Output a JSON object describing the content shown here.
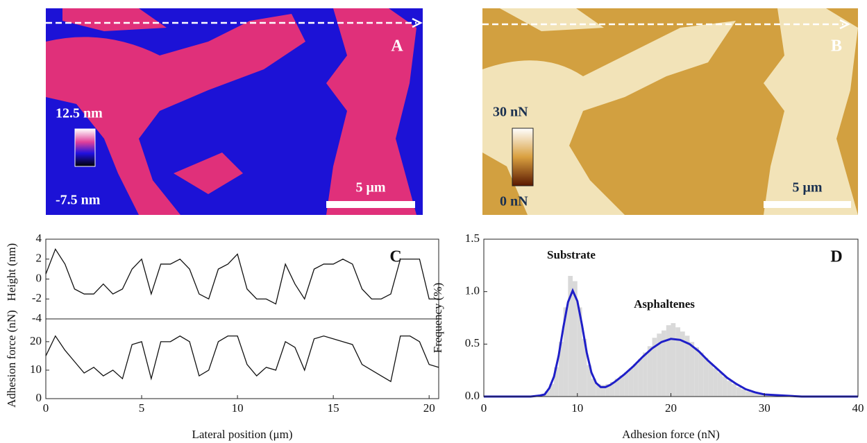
{
  "chart_data": [
    {
      "type": "image",
      "label": "A",
      "colorbar_max": "12.5 nm",
      "colorbar_min": "-7.5 nm",
      "scale_bar": "5 μm"
    },
    {
      "type": "image",
      "label": "B",
      "colorbar_max": "30 nN",
      "colorbar_min": "0 nN",
      "scale_bar": "5 μm"
    },
    {
      "type": "line",
      "label": "C",
      "xlabel": "Lateral position (μm)",
      "x": [
        0,
        0.5,
        1,
        1.5,
        2,
        2.5,
        3,
        3.5,
        4,
        4.5,
        5,
        5.5,
        6,
        6.5,
        7,
        7.5,
        8,
        8.5,
        9,
        9.5,
        10,
        10.5,
        11,
        11.5,
        12,
        12.5,
        13,
        13.5,
        14,
        14.5,
        15,
        15.5,
        16,
        16.5,
        17,
        17.5,
        18,
        18.5,
        19,
        19.5,
        20,
        20.5
      ],
      "xlim": [
        0,
        20.5
      ],
      "xticks": [
        0,
        5,
        10,
        15,
        20
      ],
      "subplots": [
        {
          "ylabel": "Height (nm)",
          "ylim": [
            -4,
            4
          ],
          "yticks": [
            -4,
            -2,
            0,
            2,
            4
          ],
          "color": "#111111",
          "values": [
            0.5,
            3,
            1.5,
            -1,
            -1.5,
            -1.5,
            -0.5,
            -1.5,
            -1,
            1,
            2,
            -1.5,
            1.5,
            1.5,
            2,
            1,
            -1.5,
            -2,
            1,
            1.5,
            2.5,
            -1,
            -2,
            -2,
            -2.5,
            1.5,
            -0.5,
            -2,
            1,
            1.5,
            1.5,
            2,
            1.5,
            -1,
            -2,
            -2,
            -1.5,
            2,
            2,
            2,
            -2,
            -2
          ]
        },
        {
          "ylabel": "Adhesion force (nN)",
          "ylim": [
            0,
            28
          ],
          "yticks": [
            0,
            10,
            20
          ],
          "color": "#111111",
          "values": [
            15,
            22,
            17,
            13,
            9,
            11,
            8,
            10,
            7,
            19,
            20,
            7,
            20,
            20,
            22,
            20,
            8,
            10,
            20,
            22,
            22,
            12,
            8,
            11,
            10,
            20,
            18,
            10,
            21,
            22,
            21,
            20,
            19,
            12,
            10,
            8,
            6,
            22,
            22,
            20,
            12,
            11
          ]
        }
      ]
    },
    {
      "type": "histogram",
      "label": "D",
      "xlabel": "Adhesion force (nN)",
      "ylabel": "Frequency (%)",
      "annotations": [
        "Substrate",
        "Asphaltenes"
      ],
      "xlim": [
        0,
        40
      ],
      "xticks": [
        0,
        10,
        20,
        30,
        40
      ],
      "ylim": [
        0,
        1.5
      ],
      "yticks": [
        {
          "value": 0,
          "label": "0.0"
        },
        0.5,
        {
          "value": 1,
          "label": "1.0"
        },
        1.5
      ],
      "color": "#d9d9d9",
      "bins": [
        5,
        5.5,
        6,
        6.5,
        7,
        7.5,
        8,
        8.5,
        9,
        9.5,
        10,
        10.5,
        11,
        11.5,
        12,
        12.5,
        13,
        13.5,
        14,
        14.5,
        15,
        15.5,
        16,
        16.5,
        17,
        17.5,
        18,
        18.5,
        19,
        19.5,
        20,
        20.5,
        21,
        21.5,
        22,
        22.5,
        23,
        23.5,
        24,
        24.5,
        25,
        25.5,
        26,
        26.5,
        27,
        27.5,
        28,
        28.5,
        29,
        29.5,
        30,
        30.5,
        31,
        31.5,
        32
      ],
      "counts": [
        0.0,
        0.01,
        0.02,
        0.05,
        0.12,
        0.28,
        0.52,
        0.85,
        1.15,
        1.1,
        0.85,
        0.55,
        0.3,
        0.17,
        0.12,
        0.11,
        0.12,
        0.14,
        0.17,
        0.2,
        0.23,
        0.27,
        0.31,
        0.36,
        0.42,
        0.48,
        0.56,
        0.6,
        0.63,
        0.68,
        0.7,
        0.66,
        0.62,
        0.58,
        0.52,
        0.47,
        0.42,
        0.37,
        0.32,
        0.27,
        0.23,
        0.19,
        0.15,
        0.12,
        0.09,
        0.07,
        0.05,
        0.04,
        0.03,
        0.02,
        0.01,
        0.01,
        0.01,
        0.0
      ],
      "fit": {
        "color": "#1f1fc8",
        "x": [
          0,
          2,
          4,
          5,
          6,
          6.5,
          7,
          7.5,
          8,
          8.5,
          9,
          9.5,
          10,
          10.5,
          11,
          11.5,
          12,
          12.5,
          13,
          13.5,
          14,
          15,
          16,
          17,
          18,
          19,
          20,
          21,
          22,
          23,
          24,
          25,
          26,
          27,
          28,
          29,
          30,
          32,
          34,
          40
        ],
        "values": [
          0,
          0,
          0,
          0,
          0.01,
          0.02,
          0.08,
          0.19,
          0.39,
          0.66,
          0.9,
          1.01,
          0.91,
          0.68,
          0.42,
          0.23,
          0.13,
          0.09,
          0.09,
          0.11,
          0.14,
          0.21,
          0.29,
          0.38,
          0.46,
          0.52,
          0.55,
          0.54,
          0.5,
          0.43,
          0.34,
          0.26,
          0.18,
          0.12,
          0.07,
          0.04,
          0.02,
          0.01,
          0,
          0
        ]
      }
    }
  ]
}
